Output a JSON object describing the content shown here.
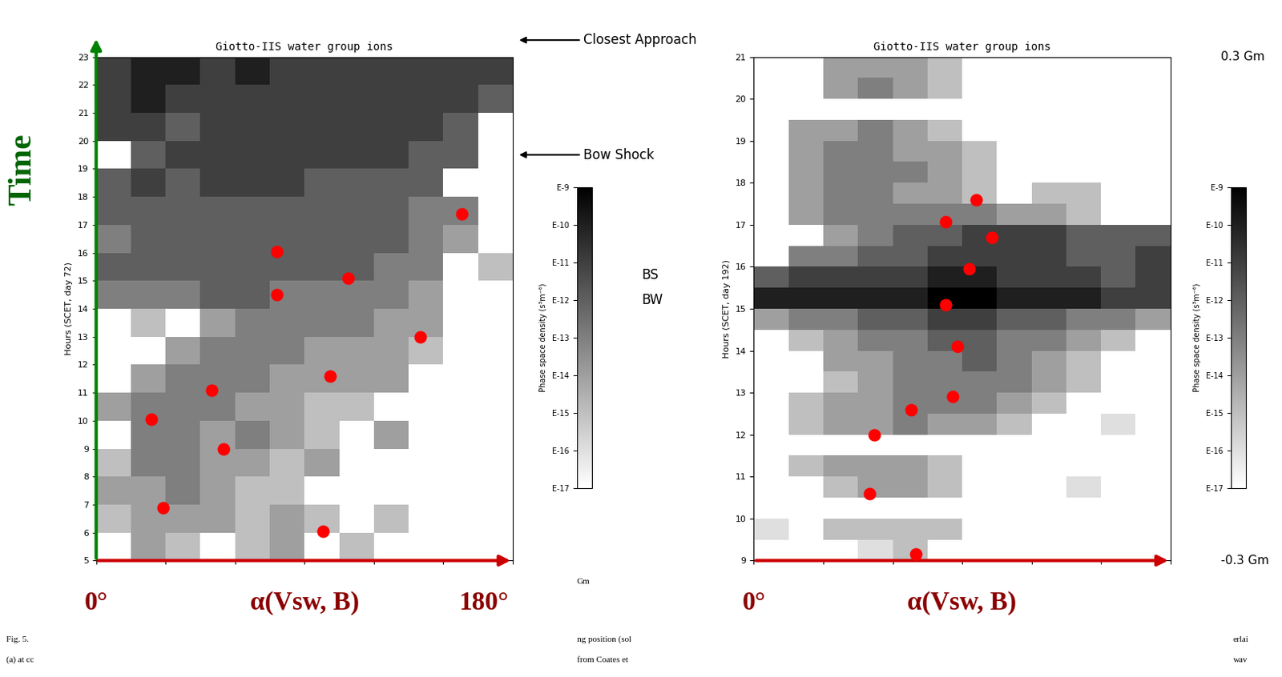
{
  "chart_data": [
    {
      "type": "heatmap",
      "title": "Giotto-IIS water group ions",
      "y_label": "Hours (SCET, day 72)",
      "x_label": "α(Vsw, B)",
      "x_end_labels": [
        "0°",
        "180°"
      ],
      "side_label": "Time",
      "xlim": [
        0,
        180
      ],
      "xticks": [
        0,
        30,
        60,
        90,
        120,
        150,
        180
      ],
      "ylim": [
        5,
        23
      ],
      "yticks": [
        5,
        6,
        7,
        8,
        9,
        10,
        11,
        12,
        13,
        14,
        15,
        16,
        17,
        18,
        19,
        20,
        21,
        22,
        23
      ],
      "tick_labels": "y",
      "grid": false,
      "x_bins": [
        0,
        15,
        30,
        45,
        60,
        75,
        90,
        105,
        120,
        135,
        150,
        165,
        180
      ],
      "y_bins": [
        5,
        6,
        7,
        8,
        9,
        10,
        11,
        12,
        13,
        14,
        15,
        16,
        17,
        18,
        19,
        20,
        21,
        22,
        23
      ],
      "cells": [
        [
          null,
          1e-14,
          1e-15,
          null,
          1e-15,
          1e-14,
          null,
          1e-15,
          null,
          null,
          null,
          null
        ],
        [
          1e-15,
          1e-14,
          1e-14,
          1e-14,
          1e-15,
          1e-14,
          1e-15,
          null,
          1e-15,
          null,
          null,
          null
        ],
        [
          1e-14,
          1e-14,
          1e-13,
          1e-14,
          1e-15,
          1e-15,
          null,
          null,
          null,
          null,
          null,
          null
        ],
        [
          1e-15,
          1e-13,
          1e-13,
          1e-14,
          1e-14,
          1e-15,
          1e-14,
          null,
          null,
          null,
          null,
          null
        ],
        [
          null,
          1e-13,
          1e-13,
          1e-14,
          1e-13,
          1e-14,
          1e-15,
          null,
          1e-14,
          null,
          null,
          null
        ],
        [
          1e-14,
          1e-13,
          1e-13,
          1e-13,
          1e-14,
          1e-14,
          1e-15,
          1e-15,
          null,
          null,
          null,
          null
        ],
        [
          null,
          1e-14,
          1e-13,
          1e-13,
          1e-13,
          1e-14,
          1e-14,
          1e-14,
          1e-14,
          null,
          null,
          null
        ],
        [
          null,
          null,
          1e-14,
          1e-13,
          1e-13,
          1e-13,
          1e-14,
          1e-14,
          1e-14,
          1e-15,
          null,
          null
        ],
        [
          null,
          1e-15,
          null,
          1e-14,
          1e-13,
          1e-13,
          1e-13,
          1e-13,
          1e-14,
          1e-14,
          null,
          null
        ],
        [
          1e-13,
          1e-13,
          1e-13,
          1e-12,
          1e-12,
          1e-13,
          1e-13,
          1e-13,
          1e-13,
          1e-14,
          null,
          null
        ],
        [
          1e-12,
          1e-12,
          1e-12,
          1e-12,
          1e-12,
          1e-12,
          1e-12,
          1e-12,
          1e-13,
          1e-13,
          null,
          1e-15
        ],
        [
          1e-13,
          1e-12,
          1e-12,
          1e-12,
          1e-12,
          1e-12,
          1e-12,
          1e-12,
          1e-12,
          1e-13,
          1e-14,
          null
        ],
        [
          1e-12,
          1e-12,
          1e-12,
          1e-12,
          1e-12,
          1e-12,
          1e-12,
          1e-12,
          1e-12,
          1e-13,
          1e-13,
          null
        ],
        [
          1e-12,
          1e-11,
          1e-12,
          1e-11,
          1e-11,
          1e-11,
          1e-12,
          1e-12,
          1e-12,
          1e-12,
          null,
          null
        ],
        [
          null,
          1e-12,
          1e-11,
          1e-11,
          1e-11,
          1e-11,
          1e-11,
          1e-11,
          1e-11,
          1e-12,
          1e-12,
          null
        ],
        [
          1e-11,
          1e-11,
          1e-12,
          1e-11,
          1e-11,
          1e-11,
          1e-11,
          1e-11,
          1e-11,
          1e-11,
          1e-12,
          null
        ],
        [
          1e-11,
          1e-10,
          1e-11,
          1e-11,
          1e-11,
          1e-11,
          1e-11,
          1e-11,
          1e-11,
          1e-11,
          1e-11,
          1e-12
        ],
        [
          1e-11,
          1e-10,
          1e-10,
          1e-11,
          1e-10,
          1e-11,
          1e-11,
          1e-11,
          1e-11,
          1e-11,
          1e-11,
          1e-11
        ]
      ],
      "colorbar": {
        "label": "Phase space density (s³m⁻⁶)",
        "range": [
          1e-17,
          1e-09
        ],
        "ticks": [
          {
            "value": 1e-17,
            "label": "E-17"
          },
          {
            "value": 1e-16,
            "label": "E-16"
          },
          {
            "value": 1e-15,
            "label": "E-15"
          },
          {
            "value": 1e-14,
            "label": "E-14"
          },
          {
            "value": 1e-13,
            "label": "E-13"
          },
          {
            "value": 1e-12,
            "label": "E-12"
          },
          {
            "value": 1e-11,
            "label": "E-11"
          },
          {
            "value": 1e-10,
            "label": "E-10"
          },
          {
            "value": 1e-09,
            "label": "E-9"
          }
        ]
      },
      "points": {
        "x": [
          158,
          78,
          109,
          78,
          140,
          101,
          50,
          24,
          55,
          29,
          98
        ],
        "y": [
          17.4,
          16.05,
          15.1,
          14.5,
          13.0,
          11.6,
          11.1,
          10.05,
          9.0,
          6.9,
          6.05
        ],
        "color": "#ff0000",
        "marker": "o"
      },
      "arrow_notes": [
        {
          "text": "Closest Approach",
          "y": 23.6
        },
        {
          "text": "Bow Shock",
          "y": 19.5
        }
      ]
    },
    {
      "type": "heatmap",
      "title": "Giotto-IIS water group ions",
      "y_label": "Hours (SCET, day 192)",
      "x_label": "α(Vsw, B)",
      "x_end_labels": [
        "0°"
      ],
      "xlim": [
        0,
        180
      ],
      "xticks": [
        0,
        30,
        60,
        90,
        120,
        150,
        180
      ],
      "ylim": [
        9,
        21
      ],
      "yticks": [
        9,
        10,
        11,
        12,
        13,
        14,
        15,
        16,
        17,
        18,
        19,
        20,
        21
      ],
      "tick_labels": "y",
      "grid": false,
      "x_bins": [
        0,
        15,
        30,
        45,
        60,
        75,
        90,
        105,
        120,
        135,
        150,
        165,
        180
      ],
      "y_bins": [
        9,
        9.5,
        10,
        10.5,
        11,
        11.5,
        12,
        12.5,
        13,
        13.5,
        14,
        14.5,
        15,
        15.5,
        16,
        16.5,
        17,
        17.5,
        18,
        18.5,
        19,
        19.5,
        20,
        20.5,
        21
      ],
      "cells": [
        [
          null,
          null,
          null,
          1e-16,
          1e-15,
          null,
          null,
          null,
          null,
          null,
          null,
          null
        ],
        [
          1e-16,
          null,
          1e-15,
          1e-15,
          1e-15,
          1e-15,
          null,
          null,
          null,
          null,
          null,
          null
        ],
        [
          null,
          null,
          null,
          null,
          null,
          null,
          null,
          null,
          null,
          null,
          null,
          null
        ],
        [
          null,
          null,
          1e-15,
          1e-14,
          1e-14,
          1e-15,
          null,
          null,
          null,
          1e-16,
          null,
          null
        ],
        [
          null,
          1e-15,
          1e-14,
          1e-14,
          1e-14,
          1e-15,
          null,
          null,
          null,
          null,
          null,
          null
        ],
        [
          null,
          null,
          null,
          null,
          null,
          null,
          null,
          null,
          null,
          null,
          null,
          null
        ],
        [
          null,
          1e-15,
          1e-14,
          1e-14,
          1e-13,
          1e-14,
          1e-14,
          1e-15,
          null,
          null,
          1e-16,
          null
        ],
        [
          null,
          1e-15,
          1e-14,
          1e-14,
          1e-13,
          1e-13,
          1e-13,
          1e-14,
          1e-15,
          null,
          null,
          null
        ],
        [
          null,
          null,
          1e-15,
          1e-14,
          1e-13,
          1e-13,
          1e-13,
          1e-13,
          1e-14,
          1e-15,
          null,
          null
        ],
        [
          null,
          null,
          1e-14,
          1e-14,
          1e-13,
          1e-13,
          1e-12,
          1e-13,
          1e-14,
          1e-15,
          null,
          null
        ],
        [
          null,
          1e-15,
          1e-14,
          1e-13,
          1e-13,
          1e-12,
          1e-12,
          1e-13,
          1e-13,
          1e-14,
          1e-15,
          null
        ],
        [
          1e-14,
          1e-13,
          1e-13,
          1e-12,
          1e-12,
          1e-11,
          1e-11,
          1e-12,
          1e-12,
          1e-13,
          1e-13,
          1e-14
        ],
        [
          1e-10,
          1e-10,
          1e-10,
          1e-10,
          1e-10,
          1e-09,
          1e-09,
          1e-10,
          1e-10,
          1e-10,
          1e-11,
          1e-11
        ],
        [
          1e-12,
          1e-11,
          1e-11,
          1e-11,
          1e-11,
          1e-10,
          1e-10,
          1e-11,
          1e-11,
          1e-11,
          1e-12,
          1e-11
        ],
        [
          null,
          1e-13,
          1e-13,
          1e-12,
          1e-12,
          1e-11,
          1e-11,
          1e-11,
          1e-11,
          1e-12,
          1e-12,
          1e-11
        ],
        [
          null,
          null,
          1e-14,
          1e-13,
          1e-12,
          1e-12,
          1e-11,
          1e-11,
          1e-11,
          1e-12,
          1e-12,
          1e-12
        ],
        [
          null,
          1e-14,
          1e-13,
          1e-13,
          1e-13,
          1e-13,
          1e-13,
          1e-14,
          1e-14,
          1e-15,
          null,
          null
        ],
        [
          null,
          1e-14,
          1e-13,
          1e-13,
          1e-14,
          1e-14,
          1e-15,
          null,
          1e-15,
          1e-15,
          null,
          null
        ],
        [
          null,
          1e-14,
          1e-13,
          1e-13,
          1e-13,
          1e-14,
          1e-15,
          null,
          null,
          null,
          null,
          null
        ],
        [
          null,
          1e-14,
          1e-13,
          1e-13,
          1e-14,
          1e-14,
          1e-15,
          null,
          null,
          null,
          null,
          null
        ],
        [
          null,
          1e-14,
          1e-14,
          1e-13,
          1e-14,
          1e-15,
          null,
          null,
          null,
          null,
          null,
          null
        ],
        [
          null,
          null,
          null,
          null,
          null,
          null,
          null,
          null,
          null,
          null,
          null,
          null
        ],
        [
          null,
          null,
          1e-14,
          1e-13,
          1e-14,
          1e-15,
          null,
          null,
          null,
          null,
          null,
          null
        ],
        [
          null,
          null,
          1e-14,
          1e-14,
          1e-14,
          1e-15,
          null,
          null,
          null,
          null,
          null,
          null
        ]
      ],
      "colorbar": {
        "label": "Phase space density (s³m⁻⁶)",
        "range": [
          1e-17,
          1e-09
        ],
        "ticks": [
          {
            "value": 1e-17,
            "label": "E-17"
          },
          {
            "value": 1e-16,
            "label": "E-16"
          },
          {
            "value": 1e-15,
            "label": "E-15"
          },
          {
            "value": 1e-14,
            "label": "E-14"
          },
          {
            "value": 1e-13,
            "label": "E-13"
          },
          {
            "value": 1e-12,
            "label": "E-12"
          },
          {
            "value": 1e-11,
            "label": "E-11"
          },
          {
            "value": 1e-10,
            "label": "E-10"
          },
          {
            "value": 1e-09,
            "label": "E-9"
          }
        ]
      },
      "points": {
        "x": [
          96,
          83,
          103,
          93,
          83,
          88,
          86,
          68,
          52,
          50,
          70
        ],
        "y": [
          17.6,
          17.08,
          16.7,
          15.95,
          15.1,
          14.1,
          12.9,
          12.6,
          12.0,
          10.6,
          9.15
        ],
        "color": "#ff0000",
        "marker": "o"
      },
      "side_notes_left": [
        {
          "text": "BS",
          "y": 15.8
        },
        {
          "text": "BW",
          "y": 15.2
        }
      ],
      "side_notes_right": [
        {
          "text": "0.3 Gm",
          "y": 21
        },
        {
          "text": "-0.3 Gm",
          "y": 9
        }
      ]
    }
  ],
  "footer_fragments": [
    "Fig. 5.",
    "(a) at cc",
    "Gm",
    "ng position (sol",
    "from Coates et",
    "erlai",
    "wav"
  ]
}
